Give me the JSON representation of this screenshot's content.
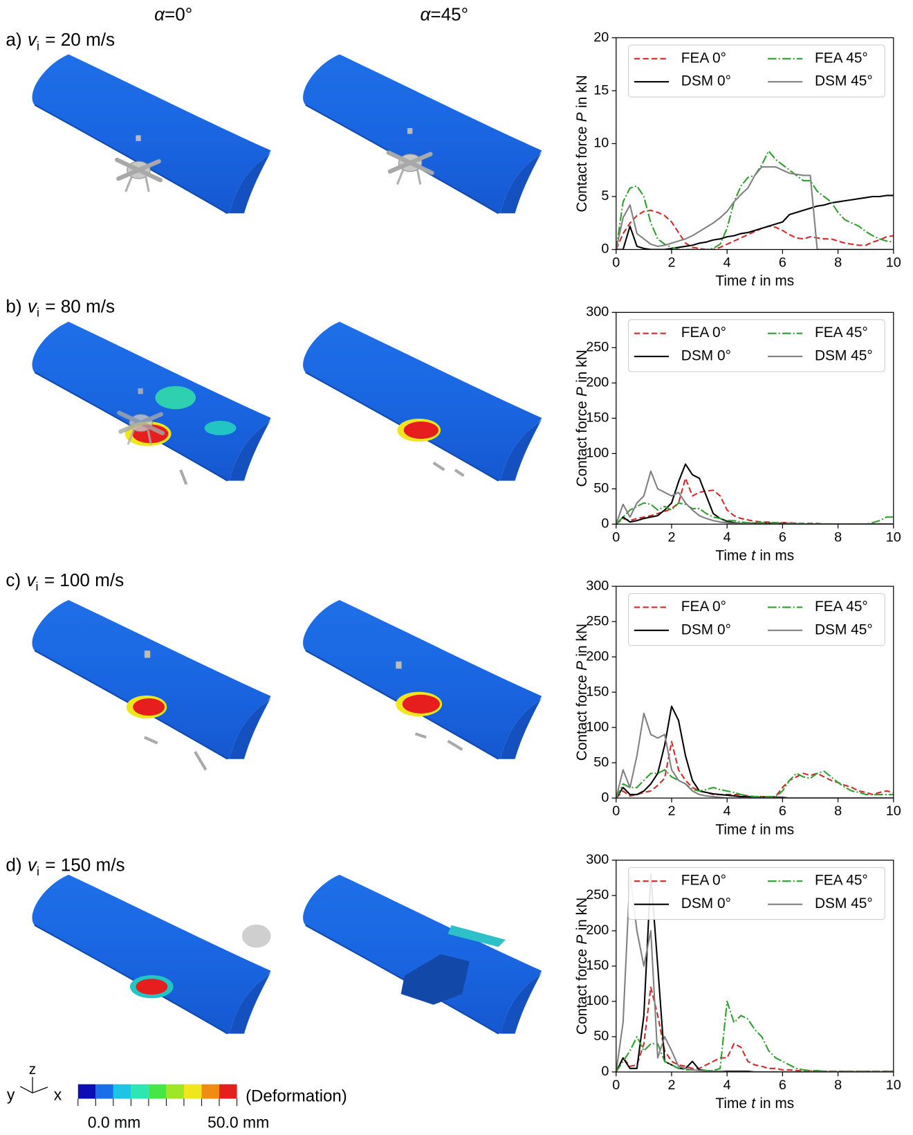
{
  "columns": [
    {
      "symbol": "α",
      "value": "=0°"
    },
    {
      "symbol": "α",
      "value": "=45°"
    }
  ],
  "panels": [
    {
      "prefix": "a)",
      "var": "v",
      "sub": "i",
      "rest": "= 20 m/s"
    },
    {
      "prefix": "b)",
      "var": "v",
      "sub": "i",
      "rest": "= 80 m/s"
    },
    {
      "prefix": "c)",
      "var": "v",
      "sub": "i",
      "rest": "= 100 m/s"
    },
    {
      "prefix": "d)",
      "var": "v",
      "sub": "i",
      "rest": "= 150 m/s"
    }
  ],
  "colorbar": {
    "label": "(Deformation)",
    "min_label": "0.0 mm",
    "max_label": "50.0 mm",
    "colors": [
      "#0d0db4",
      "#1a6ee8",
      "#1ec3e6",
      "#2ee6b4",
      "#46e646",
      "#a0e628",
      "#f0e61e",
      "#f08c14",
      "#e61e1e"
    ]
  },
  "triad": {
    "z": "z",
    "y": "y",
    "x": "x"
  },
  "chart_data": [
    {
      "type": "line",
      "legend": "upper right",
      "xlabel": {
        "text": "Time",
        "var": "t",
        "unit": "in ms"
      },
      "ylabel": {
        "text": "Contact force",
        "var": "P",
        "unit": "in kN"
      },
      "xlim": [
        0,
        10
      ],
      "ylim": [
        0,
        20
      ],
      "xticks": [
        0,
        2,
        4,
        6,
        8,
        10
      ],
      "yticks": [
        0,
        5,
        10,
        15,
        20
      ],
      "x": [
        0,
        0.25,
        0.5,
        0.75,
        1,
        1.25,
        1.5,
        1.75,
        2,
        2.25,
        2.5,
        2.75,
        3,
        3.25,
        3.5,
        3.75,
        4,
        4.25,
        4.5,
        4.75,
        5,
        5.25,
        5.5,
        5.75,
        6,
        6.25,
        6.5,
        6.75,
        7,
        7.25,
        7.5,
        7.75,
        8,
        8.25,
        8.5,
        8.75,
        9,
        9.25,
        9.5,
        9.75,
        10
      ],
      "series": [
        {
          "name": "FEA 0°",
          "color": "#d62728",
          "dash": "dashed",
          "values": [
            0,
            1.5,
            2.5,
            3.2,
            3.6,
            3.7,
            3.5,
            3.2,
            2.6,
            1.6,
            0.6,
            0.2,
            0.1,
            0,
            0,
            0.2,
            0.5,
            0.8,
            1.1,
            1.4,
            1.7,
            2.0,
            2.2,
            2.1,
            1.8,
            1.4,
            1.1,
            1.0,
            1.2,
            1.1,
            1.0,
            1.0,
            0.8,
            0.6,
            0.5,
            0.4,
            0.4,
            0.7,
            0.9,
            1.2,
            1.3
          ]
        },
        {
          "name": "DSM 0°",
          "color": "#000000",
          "dash": "solid",
          "values": [
            0,
            0,
            2.2,
            0.3,
            0.1,
            0,
            0,
            0,
            0.1,
            0.2,
            0.3,
            0.4,
            0.6,
            0.7,
            0.9,
            1.0,
            1.2,
            1.3,
            1.5,
            1.6,
            1.8,
            2.0,
            2.2,
            2.4,
            2.6,
            3.3,
            3.5,
            3.7,
            3.9,
            4.1,
            4.2,
            4.4,
            4.5,
            4.6,
            4.7,
            4.8,
            4.9,
            5.0,
            5.0,
            5.1,
            5.1
          ]
        },
        {
          "name": "FEA 45°",
          "color": "#2ca02c",
          "dash": "dashdot",
          "values": [
            0,
            4.5,
            5.8,
            6.0,
            5.0,
            2.5,
            1.0,
            0.5,
            0.2,
            0,
            0,
            0,
            0,
            0,
            0.1,
            0.5,
            2.0,
            4.5,
            6.0,
            6.8,
            7.0,
            8.0,
            9.3,
            8.5,
            8.0,
            7.5,
            7.0,
            6.5,
            6.5,
            5.5,
            5.0,
            4.5,
            3.5,
            2.8,
            2.5,
            2.2,
            1.7,
            1.3,
            1.0,
            0.8,
            0.7
          ]
        },
        {
          "name": "DSM 45°",
          "color": "#808080",
          "dash": "solid",
          "values": [
            0,
            3.0,
            4.2,
            1.5,
            1.0,
            0.5,
            0.3,
            0.4,
            0.6,
            0.8,
            1.0,
            1.3,
            1.7,
            2.1,
            2.5,
            3.0,
            3.6,
            4.5,
            5.2,
            5.8,
            7.0,
            7.8,
            7.8,
            7.8,
            7.5,
            7.2,
            7.1,
            7.0,
            7.0,
            0,
            0,
            0,
            0,
            0,
            0,
            0,
            0,
            0,
            0,
            0,
            0
          ]
        }
      ]
    },
    {
      "type": "line",
      "legend": "upper right",
      "xlabel": {
        "text": "Time",
        "var": "t",
        "unit": "in ms"
      },
      "ylabel": {
        "text": "Contact force",
        "var": "P",
        "unit": "in kN"
      },
      "xlim": [
        0,
        10
      ],
      "ylim": [
        0,
        300
      ],
      "xticks": [
        0,
        2,
        4,
        6,
        8,
        10
      ],
      "yticks": [
        0,
        50,
        100,
        150,
        200,
        250,
        300
      ],
      "x": [
        0,
        0.25,
        0.5,
        0.75,
        1,
        1.25,
        1.5,
        1.75,
        2,
        2.25,
        2.5,
        2.75,
        3,
        3.25,
        3.5,
        3.75,
        4,
        4.25,
        4.5,
        4.75,
        5,
        5.25,
        5.5,
        5.75,
        6,
        6.25,
        6.5,
        6.75,
        7,
        7.25,
        7.5,
        7.75,
        8,
        8.25,
        8.5,
        8.75,
        9,
        9.25,
        9.5,
        9.75,
        10
      ],
      "series": [
        {
          "name": "FEA 0°",
          "color": "#d62728",
          "dash": "dashed",
          "values": [
            0,
            8,
            5,
            8,
            10,
            12,
            15,
            18,
            22,
            30,
            65,
            40,
            45,
            47,
            48,
            40,
            20,
            12,
            8,
            6,
            4,
            3,
            3,
            2,
            2,
            2,
            1,
            1,
            1,
            1,
            0,
            0,
            0,
            0,
            0,
            0,
            0,
            0,
            0,
            0,
            0
          ]
        },
        {
          "name": "DSM 0°",
          "color": "#000000",
          "dash": "solid",
          "values": [
            0,
            10,
            3,
            5,
            8,
            10,
            12,
            20,
            30,
            60,
            85,
            70,
            65,
            40,
            15,
            8,
            4,
            2,
            1,
            1,
            1,
            1,
            1,
            1,
            1,
            1,
            0,
            0,
            0,
            0,
            0,
            0,
            0,
            0,
            0,
            0,
            0,
            0,
            0,
            0,
            0
          ]
        },
        {
          "name": "FEA 45°",
          "color": "#2ca02c",
          "dash": "dashdot",
          "values": [
            0,
            10,
            20,
            25,
            30,
            28,
            20,
            25,
            20,
            30,
            28,
            22,
            22,
            15,
            10,
            8,
            5,
            5,
            3,
            2,
            2,
            2,
            2,
            2,
            1,
            1,
            1,
            0,
            0,
            0,
            0,
            0,
            0,
            0,
            0,
            0,
            0,
            2,
            5,
            10,
            10
          ]
        },
        {
          "name": "DSM 45°",
          "color": "#808080",
          "dash": "solid",
          "values": [
            0,
            28,
            10,
            30,
            40,
            75,
            50,
            45,
            40,
            45,
            30,
            20,
            12,
            8,
            5,
            3,
            2,
            1,
            1,
            1,
            0,
            0,
            0,
            0,
            0,
            0,
            0,
            0,
            0,
            0,
            0,
            0,
            0,
            0,
            0,
            0,
            0,
            0,
            0,
            0,
            0
          ]
        }
      ]
    },
    {
      "type": "line",
      "legend": "upper right",
      "xlabel": {
        "text": "Time",
        "var": "t",
        "unit": "in ms"
      },
      "ylabel": {
        "text": "Contact force",
        "var": "P",
        "unit": "in kN"
      },
      "xlim": [
        0,
        10
      ],
      "ylim": [
        0,
        300
      ],
      "xticks": [
        0,
        2,
        4,
        6,
        8,
        10
      ],
      "yticks": [
        0,
        50,
        100,
        150,
        200,
        250,
        300
      ],
      "x": [
        0,
        0.25,
        0.5,
        0.75,
        1,
        1.25,
        1.5,
        1.75,
        2,
        2.25,
        2.5,
        2.75,
        3,
        3.25,
        3.5,
        3.75,
        4,
        4.25,
        4.5,
        4.75,
        5,
        5.25,
        5.5,
        5.75,
        6,
        6.25,
        6.5,
        6.75,
        7,
        7.25,
        7.5,
        7.75,
        8,
        8.25,
        8.5,
        8.75,
        9,
        9.25,
        9.5,
        9.75,
        10
      ],
      "series": [
        {
          "name": "FEA 0°",
          "color": "#d62728",
          "dash": "dashed",
          "values": [
            0,
            10,
            3,
            5,
            8,
            10,
            18,
            28,
            80,
            40,
            25,
            15,
            10,
            8,
            5,
            5,
            5,
            5,
            5,
            3,
            2,
            2,
            2,
            2,
            15,
            25,
            30,
            35,
            32,
            35,
            30,
            25,
            22,
            18,
            15,
            10,
            8,
            5,
            8,
            10,
            8
          ]
        },
        {
          "name": "DSM 0°",
          "color": "#000000",
          "dash": "solid",
          "values": [
            0,
            15,
            5,
            5,
            10,
            20,
            35,
            75,
            130,
            110,
            60,
            25,
            10,
            8,
            6,
            5,
            4,
            3,
            2,
            2,
            1,
            1,
            1,
            1,
            1,
            0,
            0,
            0,
            0,
            0,
            0,
            0,
            0,
            0,
            0,
            0,
            0,
            0,
            0,
            0,
            0
          ]
        },
        {
          "name": "FEA 45°",
          "color": "#2ca02c",
          "dash": "dashdot",
          "values": [
            0,
            20,
            15,
            15,
            25,
            35,
            35,
            40,
            30,
            25,
            20,
            12,
            10,
            12,
            15,
            12,
            10,
            8,
            5,
            3,
            2,
            2,
            2,
            2,
            10,
            25,
            35,
            30,
            28,
            35,
            38,
            30,
            22,
            15,
            10,
            8,
            5,
            5,
            5,
            5,
            5
          ]
        },
        {
          "name": "DSM 45°",
          "color": "#808080",
          "dash": "solid",
          "values": [
            0,
            40,
            15,
            60,
            120,
            90,
            85,
            90,
            40,
            25,
            20,
            10,
            5,
            3,
            2,
            1,
            0,
            0,
            0,
            0,
            0,
            0,
            0,
            0,
            0,
            0,
            0,
            0,
            0,
            0,
            0,
            0,
            0,
            0,
            0,
            0,
            0,
            0,
            0,
            0,
            0
          ]
        }
      ]
    },
    {
      "type": "line",
      "legend": "upper right",
      "xlabel": {
        "text": "Time",
        "var": "t",
        "unit": "in ms"
      },
      "ylabel": {
        "text": "Contact force",
        "var": "P",
        "unit": "in kN"
      },
      "xlim": [
        0,
        10
      ],
      "ylim": [
        0,
        300
      ],
      "xticks": [
        0,
        2,
        4,
        6,
        8,
        10
      ],
      "yticks": [
        0,
        50,
        100,
        150,
        200,
        250,
        300
      ],
      "x": [
        0,
        0.25,
        0.5,
        0.75,
        1,
        1.25,
        1.5,
        1.75,
        2,
        2.25,
        2.5,
        2.75,
        3,
        3.25,
        3.5,
        3.75,
        4,
        4.25,
        4.5,
        4.75,
        5,
        5.25,
        5.5,
        5.75,
        6,
        6.25,
        6.5,
        6.75,
        7,
        7.25,
        7.5,
        7.75,
        8,
        8.25,
        8.5,
        8.75,
        9,
        9.25,
        9.5,
        9.75,
        10
      ],
      "series": [
        {
          "name": "FEA 0°",
          "color": "#d62728",
          "dash": "dashed",
          "values": [
            0,
            20,
            8,
            10,
            40,
            120,
            80,
            30,
            15,
            10,
            8,
            5,
            5,
            10,
            15,
            20,
            20,
            40,
            35,
            15,
            10,
            8,
            5,
            5,
            3,
            3,
            2,
            2,
            2,
            1,
            1,
            1,
            1,
            1,
            1,
            1,
            1,
            1,
            1,
            1,
            1
          ]
        },
        {
          "name": "DSM 0°",
          "color": "#000000",
          "dash": "solid",
          "values": [
            0,
            20,
            5,
            5,
            80,
            280,
            150,
            15,
            10,
            5,
            5,
            15,
            3,
            2,
            1,
            1,
            1,
            1,
            1,
            1,
            0,
            0,
            0,
            0,
            0,
            0,
            0,
            0,
            0,
            0,
            0,
            0,
            0,
            0,
            0,
            0,
            0,
            0,
            0,
            0,
            0
          ]
        },
        {
          "name": "FEA 45°",
          "color": "#2ca02c",
          "dash": "dashdot",
          "values": [
            0,
            15,
            30,
            50,
            30,
            40,
            40,
            15,
            10,
            5,
            3,
            3,
            2,
            2,
            2,
            5,
            100,
            70,
            80,
            75,
            60,
            50,
            30,
            20,
            15,
            10,
            5,
            3,
            2,
            2,
            1,
            1,
            1,
            1,
            1,
            1,
            1,
            1,
            1,
            1,
            1
          ]
        },
        {
          "name": "DSM 45°",
          "color": "#808080",
          "dash": "solid",
          "values": [
            0,
            70,
            280,
            200,
            150,
            200,
            20,
            50,
            30,
            8,
            5,
            3,
            2,
            1,
            1,
            1,
            0,
            0,
            0,
            0,
            0,
            0,
            0,
            0,
            0,
            0,
            0,
            0,
            0,
            0,
            0,
            0,
            0,
            0,
            0,
            0,
            0,
            0,
            0,
            0,
            0
          ]
        }
      ]
    }
  ]
}
